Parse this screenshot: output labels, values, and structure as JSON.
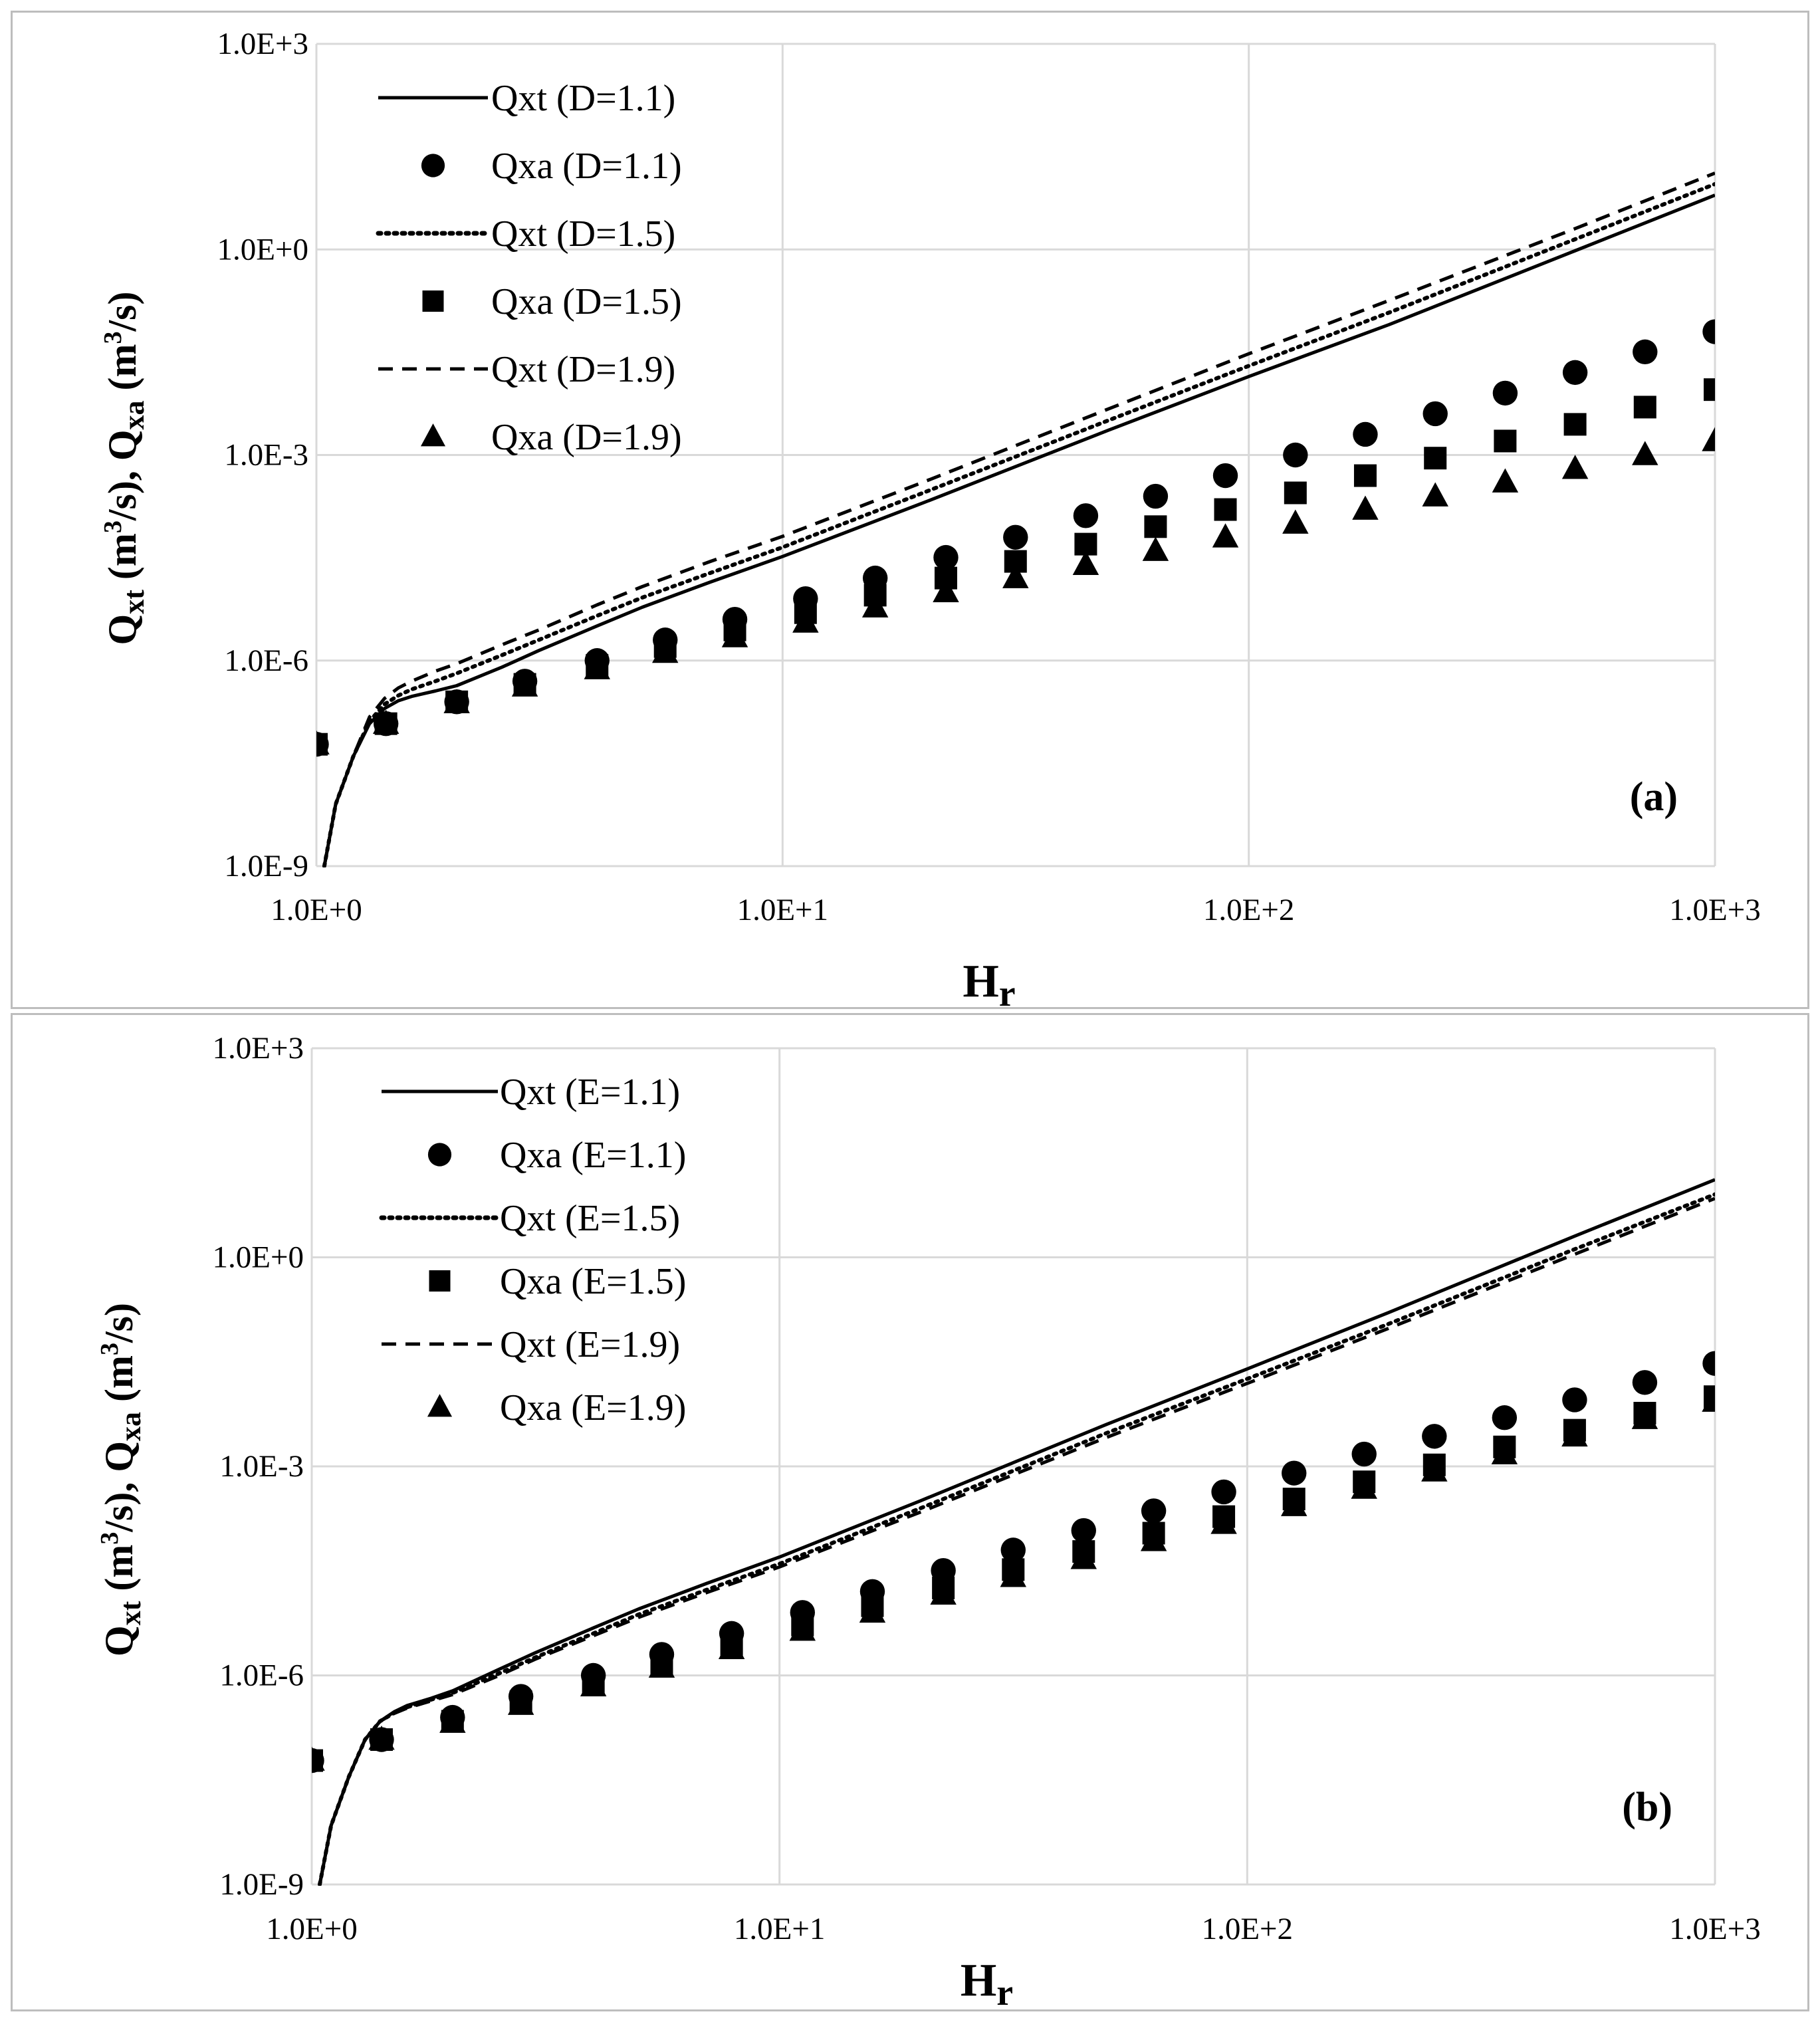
{
  "colors": {
    "series": "#000000",
    "grid": "#d9d9d9",
    "border": "#bdbdbd"
  },
  "chart_data": [
    {
      "id": "a",
      "type": "line",
      "scale": "log-log",
      "panel_label": "(a)",
      "xlim": [
        1,
        1000
      ],
      "ylim": [
        1e-09,
        1000
      ],
      "x_ticks": [
        1,
        10,
        100,
        1000
      ],
      "x_tick_labels": [
        "1.0E+0",
        "1.0E+1",
        "1.0E+2",
        "1.0E+3"
      ],
      "y_ticks": [
        1e-09,
        1e-06,
        0.001,
        1,
        1000
      ],
      "y_tick_labels": [
        "1.0E-9",
        "1.0E-6",
        "1.0E-3",
        "1.0E+0",
        "1.0E+3"
      ],
      "xlabel": {
        "main": "H",
        "sub": "r"
      },
      "ylabel": {
        "q1": "Q",
        "q1sub": "xt",
        "unit_open": " (m",
        "sup": "3",
        "unit_close": "/s), ",
        "q2": "Q",
        "q2sub": "xa",
        "unit2_open": " (m",
        "sup2": "3",
        "unit2_close": "/s)"
      },
      "grid": true,
      "legend_position": "top-left",
      "x_markers": [
        1,
        1.41,
        2,
        2.8,
        4,
        5.6,
        7.9,
        11.2,
        15.8,
        22.4,
        31.6,
        44.7,
        63.1,
        89.1,
        125.9,
        177.8,
        251.2,
        354.8,
        501.2,
        707.9,
        1000
      ],
      "series": [
        {
          "name": "Qxt (D=1.1)",
          "kind": "line",
          "dash": "solid",
          "x": [
            1.04,
            1.1,
            1.2,
            1.3,
            1.4,
            1.5,
            1.6,
            1.7,
            1.8,
            2,
            2.5,
            3,
            4,
            5,
            7,
            10,
            20,
            50,
            100,
            200,
            500,
            1000
          ],
          "y": [
            1e-09,
            8e-09,
            4e-08,
            1.2e-07,
            2e-07,
            2.6e-07,
            3e-07,
            3.3e-07,
            3.6e-07,
            4.3e-07,
            8e-07,
            1.4e-06,
            3.2e-06,
            6e-06,
            1.4e-05,
            3.3e-05,
            0.0002,
            0.0023,
            0.014,
            0.08,
            0.95,
            6.2
          ]
        },
        {
          "name": "Qxa (D=1.1)",
          "kind": "marker",
          "marker": "circle",
          "y": [
            6e-08,
            1.2e-07,
            2.5e-07,
            5e-07,
            1e-06,
            2e-06,
            4e-06,
            8e-06,
            1.6e-05,
            3.2e-05,
            6.3e-05,
            0.00013,
            0.00025,
            0.0005,
            0.001,
            0.002,
            0.004,
            0.008,
            0.016,
            0.032,
            0.063
          ]
        },
        {
          "name": "Qxt (D=1.5)",
          "kind": "line",
          "dash": "dotted",
          "x": [
            1.04,
            1.1,
            1.2,
            1.3,
            1.4,
            1.5,
            1.6,
            1.8,
            2,
            2.5,
            3,
            4,
            5,
            7,
            10,
            20,
            50,
            100,
            200,
            500,
            1000
          ],
          "y": [
            1e-09,
            8e-09,
            4e-08,
            1.3e-07,
            2.3e-07,
            3.1e-07,
            3.8e-07,
            5e-07,
            6.5e-07,
            1.2e-06,
            2e-06,
            4.5e-06,
            8.3e-06,
            1.9e-05,
            4.5e-05,
            0.00028,
            0.0032,
            0.02,
            0.12,
            1.4,
            9
          ]
        },
        {
          "name": "Qxa (D=1.5)",
          "kind": "marker",
          "marker": "square",
          "y": [
            6e-08,
            1.2e-07,
            2.5e-07,
            4.5e-07,
            8.5e-07,
            1.6e-06,
            2.8e-06,
            5e-06,
            9e-06,
            1.6e-05,
            2.8e-05,
            5e-05,
            9e-05,
            0.00016,
            0.00028,
            0.0005,
            0.0009,
            0.0016,
            0.0028,
            0.005,
            0.009
          ]
        },
        {
          "name": "Qxt (D=1.9)",
          "kind": "line",
          "dash": "dashed",
          "x": [
            1.04,
            1.1,
            1.2,
            1.3,
            1.4,
            1.5,
            1.6,
            1.8,
            2,
            2.5,
            3,
            4,
            5,
            7,
            10,
            20,
            50,
            100,
            200,
            500,
            1000
          ],
          "y": [
            1e-09,
            8e-09,
            4e-08,
            1.5e-07,
            2.8e-07,
            4e-07,
            5e-07,
            7e-07,
            9e-07,
            1.7e-06,
            2.8e-06,
            6.5e-06,
            1.2e-05,
            2.8e-05,
            6.5e-05,
            0.0004,
            0.0047,
            0.03,
            0.18,
            2,
            13
          ]
        },
        {
          "name": "Qxa (D=1.9)",
          "kind": "marker",
          "marker": "triangle",
          "y": [
            6e-08,
            1.2e-07,
            2.4e-07,
            4.2e-07,
            7.5e-07,
            1.3e-06,
            2.2e-06,
            3.6e-06,
            6e-06,
            1e-05,
            1.6e-05,
            2.5e-05,
            4e-05,
            6.3e-05,
            0.0001,
            0.00016,
            0.00025,
            0.0004,
            0.00063,
            0.001,
            0.0016
          ]
        }
      ]
    },
    {
      "id": "b",
      "type": "line",
      "scale": "log-log",
      "panel_label": "(b)",
      "xlim": [
        1,
        1000
      ],
      "ylim": [
        1e-09,
        1000
      ],
      "x_ticks": [
        1,
        10,
        100,
        1000
      ],
      "x_tick_labels": [
        "1.0E+0",
        "1.0E+1",
        "1.0E+2",
        "1.0E+3"
      ],
      "y_ticks": [
        1e-09,
        1e-06,
        0.001,
        1,
        1000
      ],
      "y_tick_labels": [
        "1.0E-9",
        "1.0E-6",
        "1.0E-3",
        "1.0E+0",
        "1.0E+3"
      ],
      "xlabel": {
        "main": "H",
        "sub": "r"
      },
      "ylabel": {
        "q1": "Q",
        "q1sub": "xt",
        "unit_open": " (m",
        "sup": "3",
        "unit_close": "/s), ",
        "q2": "Q",
        "q2sub": "xa",
        "unit2_open": " (m",
        "sup2": "3",
        "unit2_close": "/s)"
      },
      "grid": true,
      "legend_position": "top-left",
      "x_markers": [
        1,
        1.41,
        2,
        2.8,
        4,
        5.6,
        7.9,
        11.2,
        15.8,
        22.4,
        31.6,
        44.7,
        63.1,
        89.1,
        125.9,
        177.8,
        251.2,
        354.8,
        501.2,
        707.9,
        1000
      ],
      "series": [
        {
          "name": "Qxt (E=1.1)",
          "kind": "line",
          "dash": "solid",
          "x": [
            1.04,
            1.1,
            1.2,
            1.3,
            1.4,
            1.5,
            1.6,
            1.8,
            2,
            2.5,
            3,
            4,
            5,
            7,
            10,
            20,
            50,
            100,
            200,
            500,
            1000
          ],
          "y": [
            1e-09,
            7e-09,
            3.5e-08,
            1.2e-07,
            2.2e-07,
            3e-07,
            3.7e-07,
            4.7e-07,
            6e-07,
            1.2e-06,
            2.1e-06,
            4.8e-06,
            9e-06,
            2.1e-05,
            5e-05,
            0.00032,
            0.004,
            0.025,
            0.16,
            2,
            13
          ]
        },
        {
          "name": "Qxa (E=1.1)",
          "kind": "marker",
          "marker": "circle",
          "y": [
            6e-08,
            1.2e-07,
            2.5e-07,
            5e-07,
            1e-06,
            2e-06,
            4e-06,
            8e-06,
            1.6e-05,
            3.2e-05,
            6.3e-05,
            0.00012,
            0.00023,
            0.00043,
            0.0008,
            0.0015,
            0.0027,
            0.005,
            0.009,
            0.016,
            0.03
          ]
        },
        {
          "name": "Qxt (E=1.5)",
          "kind": "line",
          "dash": "dotted",
          "x": [
            1.04,
            1.1,
            1.2,
            1.3,
            1.4,
            1.5,
            1.6,
            1.8,
            2,
            2.5,
            3,
            4,
            5,
            7,
            10,
            20,
            50,
            100,
            200,
            500,
            1000
          ],
          "y": [
            1e-09,
            7e-09,
            3.5e-08,
            1.2e-07,
            2.2e-07,
            2.9e-07,
            3.5e-07,
            4.5e-07,
            5.6e-07,
            1.05e-06,
            1.8e-06,
            4e-06,
            7.5e-06,
            1.7e-05,
            4e-05,
            0.00025,
            0.003,
            0.018,
            0.11,
            1.3,
            8
          ]
        },
        {
          "name": "Qxa (E=1.5)",
          "kind": "marker",
          "marker": "square",
          "y": [
            6e-08,
            1.2e-07,
            2.2e-07,
            4.2e-07,
            8e-07,
            1.5e-06,
            2.8e-06,
            5.3e-06,
            1e-05,
            1.8e-05,
            3.3e-05,
            6e-05,
            0.00011,
            0.00019,
            0.00034,
            0.0006,
            0.00105,
            0.0019,
            0.0033,
            0.0058,
            0.01
          ]
        },
        {
          "name": "Qxt (E=1.9)",
          "kind": "line",
          "dash": "dashed",
          "x": [
            1.04,
            1.1,
            1.2,
            1.3,
            1.4,
            1.5,
            1.6,
            1.8,
            2,
            2.5,
            3,
            4,
            5,
            7,
            10,
            20,
            50,
            100,
            200,
            500,
            1000
          ],
          "y": [
            1e-09,
            7e-09,
            3.5e-08,
            1.2e-07,
            2.2e-07,
            2.85e-07,
            3.4e-07,
            4.3e-07,
            5.3e-07,
            9.8e-07,
            1.7e-06,
            3.7e-06,
            6.8e-06,
            1.55e-05,
            3.6e-05,
            0.00022,
            0.0026,
            0.0155,
            0.095,
            1.1,
            7
          ]
        },
        {
          "name": "Qxa (E=1.9)",
          "kind": "marker",
          "marker": "triangle",
          "y": [
            6e-08,
            1.2e-07,
            2.1e-07,
            3.8e-07,
            7e-07,
            1.3e-06,
            2.4e-06,
            4.4e-06,
            8e-06,
            1.45e-05,
            2.6e-05,
            4.7e-05,
            8.5e-05,
            0.00015,
            0.00027,
            0.00048,
            0.00085,
            0.0015,
            0.0027,
            0.0048,
            0.0085
          ]
        }
      ]
    }
  ]
}
